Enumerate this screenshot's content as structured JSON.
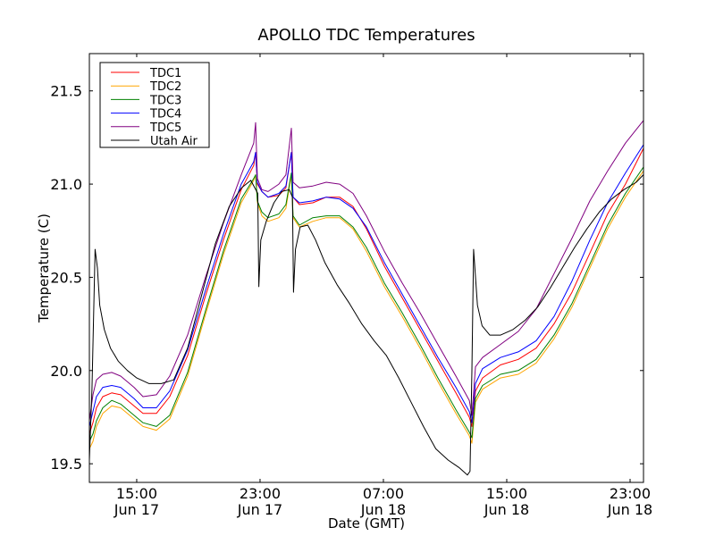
{
  "chart_data": {
    "type": "line",
    "title": "APOLLO TDC Temperatures",
    "xlabel": "Date (GMT)",
    "ylabel": "Temperature (C)",
    "x_units": "hours since 00:00 Jun 17 (GMT)",
    "xlim": [
      11.93,
      47.87
    ],
    "ylim": [
      19.4,
      21.7
    ],
    "grid": false,
    "legend_position": "top-left",
    "x_ticks": [
      {
        "value": 15,
        "label_line1": "15:00",
        "label_line2": "Jun 17"
      },
      {
        "value": 23,
        "label_line1": "23:00",
        "label_line2": "Jun 17"
      },
      {
        "value": 31,
        "label_line1": "07:00",
        "label_line2": "Jun 18"
      },
      {
        "value": 39,
        "label_line1": "15:00",
        "label_line2": "Jun 18"
      },
      {
        "value": 47,
        "label_line1": "23:00",
        "label_line2": "Jun 18"
      }
    ],
    "y_ticks": [
      {
        "value": 19.5,
        "label": "19.5"
      },
      {
        "value": 20.0,
        "label": "20.0"
      },
      {
        "value": 20.5,
        "label": "20.5"
      },
      {
        "value": 21.0,
        "label": "21.0"
      },
      {
        "value": 21.5,
        "label": "21.5"
      }
    ],
    "series": [
      {
        "name": "TDC1",
        "color": "#ff0000",
        "x": [
          11.93,
          12.16,
          12.39,
          12.8,
          13.38,
          13.96,
          14.83,
          15.41,
          16.28,
          17.14,
          18.3,
          19.46,
          20.62,
          21.78,
          22.59,
          22.71,
          22.83,
          23.12,
          23.52,
          24.22,
          24.68,
          25.03,
          25.14,
          25.55,
          26.42,
          27.29,
          28.16,
          29.03,
          29.9,
          31.06,
          32.22,
          33.38,
          34.54,
          35.7,
          36.57,
          36.74,
          36.97,
          37.43,
          38.59,
          39.75,
          40.91,
          42.07,
          43.23,
          44.39,
          45.54,
          46.7,
          47.86
        ],
        "y": [
          19.66,
          19.72,
          19.8,
          19.86,
          19.88,
          19.87,
          19.81,
          19.77,
          19.77,
          19.86,
          20.08,
          20.4,
          20.7,
          20.97,
          21.1,
          21.17,
          21.0,
          20.96,
          20.93,
          20.94,
          20.98,
          21.17,
          20.93,
          20.89,
          20.9,
          20.93,
          20.93,
          20.88,
          20.76,
          20.56,
          20.39,
          20.22,
          20.05,
          19.88,
          19.75,
          19.7,
          19.89,
          19.96,
          20.03,
          20.06,
          20.12,
          20.25,
          20.42,
          20.63,
          20.84,
          21.0,
          21.19
        ]
      },
      {
        "name": "TDC2",
        "color": "#ffa500",
        "x": [
          11.93,
          12.16,
          12.39,
          12.8,
          13.38,
          13.96,
          14.83,
          15.41,
          16.28,
          17.14,
          18.3,
          19.46,
          20.62,
          21.78,
          22.59,
          22.71,
          22.83,
          23.12,
          23.52,
          24.22,
          24.68,
          25.03,
          25.14,
          25.55,
          26.42,
          27.29,
          28.16,
          29.03,
          29.9,
          31.06,
          32.22,
          33.38,
          34.54,
          35.7,
          36.57,
          36.74,
          36.97,
          37.43,
          38.59,
          39.75,
          40.91,
          42.07,
          43.23,
          44.39,
          45.54,
          46.7,
          47.86
        ],
        "y": [
          19.58,
          19.62,
          19.7,
          19.77,
          19.81,
          19.8,
          19.74,
          19.7,
          19.68,
          19.74,
          19.97,
          20.3,
          20.62,
          20.9,
          21.02,
          21.05,
          20.9,
          20.83,
          20.8,
          20.82,
          20.87,
          21.05,
          20.82,
          20.77,
          20.8,
          20.82,
          20.82,
          20.76,
          20.64,
          20.45,
          20.29,
          20.12,
          19.94,
          19.77,
          19.65,
          19.61,
          19.83,
          19.9,
          19.96,
          19.98,
          20.04,
          20.17,
          20.34,
          20.55,
          20.76,
          20.93,
          21.07
        ]
      },
      {
        "name": "TDC3",
        "color": "#008000",
        "x": [
          11.93,
          12.16,
          12.39,
          12.8,
          13.38,
          13.96,
          14.83,
          15.41,
          16.28,
          17.14,
          18.3,
          19.46,
          20.62,
          21.78,
          22.59,
          22.71,
          22.83,
          23.12,
          23.52,
          24.22,
          24.68,
          25.03,
          25.14,
          25.55,
          26.42,
          27.29,
          28.16,
          29.03,
          29.9,
          31.06,
          32.22,
          33.38,
          34.54,
          35.7,
          36.57,
          36.74,
          36.97,
          37.43,
          38.59,
          39.75,
          40.91,
          42.07,
          43.23,
          44.39,
          45.54,
          46.7,
          47.86
        ],
        "y": [
          19.62,
          19.66,
          19.73,
          19.8,
          19.84,
          19.82,
          19.76,
          19.72,
          19.7,
          19.76,
          19.99,
          20.32,
          20.64,
          20.92,
          21.03,
          21.05,
          20.91,
          20.85,
          20.82,
          20.84,
          20.89,
          21.06,
          20.83,
          20.78,
          20.82,
          20.83,
          20.83,
          20.77,
          20.66,
          20.47,
          20.31,
          20.14,
          19.96,
          19.79,
          19.67,
          19.64,
          19.85,
          19.92,
          19.98,
          20.0,
          20.06,
          20.19,
          20.36,
          20.57,
          20.78,
          20.95,
          21.09
        ]
      },
      {
        "name": "TDC4",
        "color": "#0000ff",
        "x": [
          11.93,
          12.16,
          12.39,
          12.8,
          13.38,
          13.96,
          14.83,
          15.41,
          16.28,
          17.14,
          18.3,
          19.46,
          20.62,
          21.78,
          22.59,
          22.71,
          22.83,
          23.12,
          23.52,
          24.22,
          24.68,
          25.03,
          25.14,
          25.55,
          26.42,
          27.29,
          28.16,
          29.03,
          29.9,
          31.06,
          32.22,
          33.38,
          34.54,
          35.7,
          36.57,
          36.74,
          36.97,
          37.43,
          38.59,
          39.75,
          40.91,
          42.07,
          43.23,
          44.39,
          45.54,
          46.7,
          47.86
        ],
        "y": [
          19.7,
          19.78,
          19.86,
          19.91,
          19.92,
          19.91,
          19.85,
          19.8,
          19.8,
          19.89,
          20.11,
          20.43,
          20.73,
          21.0,
          21.12,
          21.17,
          21.01,
          20.96,
          20.93,
          20.95,
          20.99,
          21.17,
          20.93,
          20.9,
          20.91,
          20.93,
          20.92,
          20.87,
          20.77,
          20.58,
          20.41,
          20.24,
          20.07,
          19.91,
          19.78,
          19.72,
          19.93,
          20.01,
          20.07,
          20.1,
          20.16,
          20.29,
          20.48,
          20.7,
          20.9,
          21.06,
          21.21
        ]
      },
      {
        "name": "TDC5",
        "color": "#800080",
        "x": [
          11.93,
          12.16,
          12.39,
          12.8,
          13.38,
          13.96,
          14.83,
          15.41,
          16.28,
          17.14,
          18.3,
          19.46,
          20.62,
          21.78,
          22.59,
          22.71,
          22.83,
          23.12,
          23.52,
          24.22,
          24.68,
          25.03,
          25.14,
          25.55,
          26.42,
          27.29,
          28.16,
          29.03,
          29.9,
          31.06,
          32.22,
          33.38,
          34.54,
          35.7,
          36.57,
          36.74,
          36.97,
          37.43,
          38.59,
          39.75,
          40.91,
          42.07,
          43.23,
          44.39,
          45.54,
          46.7,
          47.86
        ],
        "y": [
          19.73,
          19.87,
          19.95,
          19.98,
          19.99,
          19.97,
          19.91,
          19.86,
          19.87,
          19.97,
          20.19,
          20.5,
          20.79,
          21.05,
          21.22,
          21.33,
          21.03,
          20.97,
          20.96,
          21.0,
          21.05,
          21.3,
          21.01,
          20.98,
          20.99,
          21.01,
          21.0,
          20.95,
          20.83,
          20.64,
          20.47,
          20.31,
          20.14,
          19.97,
          19.84,
          19.76,
          20.02,
          20.07,
          20.14,
          20.21,
          20.33,
          20.52,
          20.71,
          20.91,
          21.07,
          21.22,
          21.34
        ]
      },
      {
        "name": "Utah Air",
        "color": "#000000",
        "x": [
          11.93,
          12.1,
          12.3,
          12.45,
          12.6,
          12.9,
          13.3,
          13.8,
          14.4,
          15.0,
          15.8,
          16.6,
          17.4,
          18.3,
          19.2,
          20.1,
          21.0,
          21.8,
          22.4,
          22.85,
          22.92,
          23.05,
          23.4,
          23.9,
          24.4,
          24.9,
          25.1,
          25.17,
          25.3,
          25.6,
          26.1,
          26.6,
          27.2,
          28.0,
          28.8,
          29.6,
          30.4,
          31.2,
          32.0,
          32.8,
          33.6,
          34.4,
          35.2,
          35.9,
          36.45,
          36.62,
          36.74,
          36.85,
          37.1,
          37.4,
          37.9,
          38.6,
          39.4,
          40.2,
          41.0,
          41.8,
          42.6,
          43.4,
          44.2,
          45.0,
          45.8,
          46.6,
          47.4,
          47.86
        ],
        "y": [
          19.52,
          19.9,
          20.65,
          20.55,
          20.35,
          20.22,
          20.12,
          20.05,
          20.0,
          19.96,
          19.93,
          19.93,
          19.95,
          20.12,
          20.4,
          20.68,
          20.88,
          20.98,
          21.02,
          20.95,
          20.45,
          20.7,
          20.8,
          20.9,
          20.96,
          20.97,
          20.93,
          20.42,
          20.65,
          20.77,
          20.78,
          20.7,
          20.58,
          20.46,
          20.36,
          20.25,
          20.16,
          20.08,
          19.96,
          19.83,
          19.7,
          19.58,
          19.52,
          19.48,
          19.44,
          19.46,
          20.0,
          20.65,
          20.35,
          20.24,
          20.19,
          20.19,
          20.22,
          20.27,
          20.34,
          20.44,
          20.55,
          20.66,
          20.76,
          20.85,
          20.92,
          20.97,
          21.01,
          21.05
        ]
      }
    ]
  }
}
